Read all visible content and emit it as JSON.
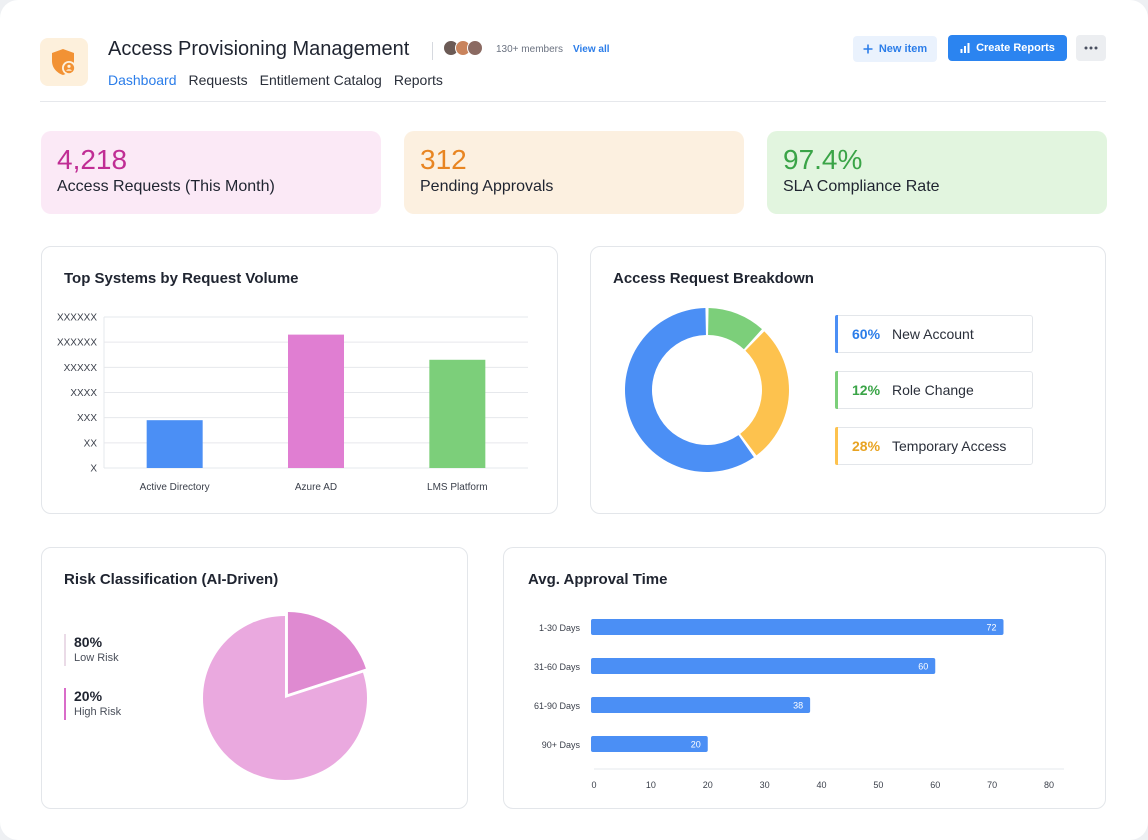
{
  "header": {
    "title": "Access Provisioning Management",
    "members": "130+ members",
    "view_all": "View all",
    "new_item": "New item",
    "create_reports": "Create Reports",
    "tabs": [
      {
        "label": "Dashboard",
        "active": true
      },
      {
        "label": "Requests",
        "active": false
      },
      {
        "label": "Entitlement Catalog",
        "active": false
      },
      {
        "label": "Reports",
        "active": false
      }
    ]
  },
  "kpis": [
    {
      "value": "4,218",
      "label": "Access Requests (This Month)"
    },
    {
      "value": "312",
      "label": "Pending Approvals"
    },
    {
      "value": "97.4%",
      "label": "SLA Compliance Rate"
    }
  ],
  "chart_data": [
    {
      "type": "bar",
      "title": "Top Systems by Request Volume",
      "categories": [
        "Active Directory",
        "Azure AD",
        "LMS Platform"
      ],
      "values": [
        1.9,
        5.3,
        4.3
      ],
      "colors": [
        "#4b8ff5",
        "#e07ed2",
        "#7ccf7a"
      ],
      "ytick_labels": [
        "X",
        "XX",
        "XXX",
        "XXXX",
        "XXXXX",
        "XXXXXX",
        "XXXXXX"
      ],
      "ylim": [
        0,
        6
      ],
      "grid": true
    },
    {
      "type": "pie",
      "variant": "donut",
      "title": "Access Request Breakdown",
      "slices": [
        {
          "label": "New Account",
          "display": "60%",
          "value": 60,
          "color": "#4b8ff5"
        },
        {
          "label": "Role Change",
          "display": "12%",
          "value": 12,
          "color": "#7ccf7a"
        },
        {
          "label": "Temporary Access",
          "display": "28%",
          "value": 28,
          "color": "#fdc24e"
        }
      ]
    },
    {
      "type": "pie",
      "title": "Risk Classification (AI-Driven)",
      "slices": [
        {
          "label": "Low Risk",
          "display": "80%",
          "value": 80,
          "color": "#eaa9df"
        },
        {
          "label": "High Risk",
          "display": "20%",
          "value": 20,
          "color": "#df8ad1"
        }
      ]
    },
    {
      "type": "bar",
      "orientation": "horizontal",
      "title": "Avg. Approval Time",
      "categories": [
        "1-30 Days",
        "31-60 Days",
        "61-90 Days",
        "90+ Days"
      ],
      "values": [
        72,
        60,
        38,
        20
      ],
      "color": "#4b8ff5",
      "xlim": [
        0,
        80
      ],
      "xticks": [
        0,
        10,
        20,
        30,
        40,
        50,
        60,
        70,
        80
      ]
    }
  ]
}
